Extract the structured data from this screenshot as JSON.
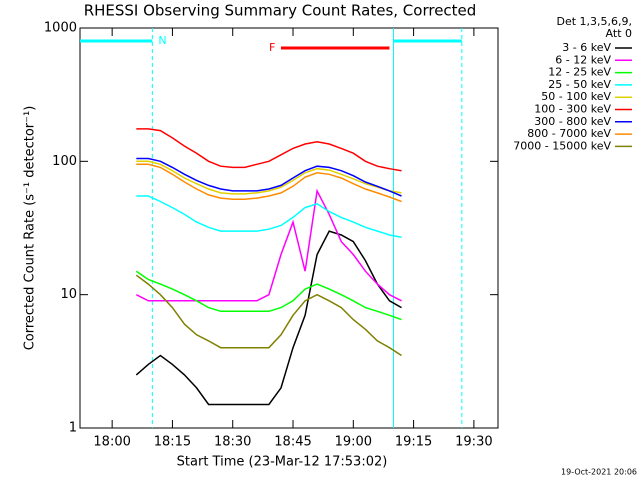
{
  "chart_data": {
    "type": "line",
    "title": "RHESSI Observing Summary Count Rates, Corrected",
    "x_label": "Start Time (23-Mar-12 17:53:02)",
    "y_label": "Corrected Count Rate (s⁻¹ detector⁻¹)",
    "legend_header": [
      "Det 1,3,5,6,9,",
      "Att 0"
    ],
    "footer": "19-Oct-2021 20:06",
    "log_y": true,
    "ylim": [
      1,
      1000
    ],
    "yticks": [
      1,
      10,
      100,
      1000
    ],
    "xlim": [
      "17:52",
      "19:36"
    ],
    "xticks": [
      "18:00",
      "18:15",
      "18:30",
      "18:45",
      "19:00",
      "19:15",
      "19:30"
    ],
    "x": [
      "18:06",
      "18:09",
      "18:12",
      "18:15",
      "18:18",
      "18:21",
      "18:24",
      "18:27",
      "18:30",
      "18:33",
      "18:36",
      "18:39",
      "18:42",
      "18:45",
      "18:48",
      "18:51",
      "18:54",
      "18:57",
      "19:00",
      "19:03",
      "19:06",
      "19:09",
      "19:12"
    ],
    "series": [
      {
        "name": "3 - 6 keV",
        "color": "#000000",
        "values": [
          2.5,
          3,
          3.5,
          3,
          2.5,
          2,
          1.5,
          1.5,
          1.5,
          1.5,
          1.5,
          1.5,
          2,
          4,
          7,
          20,
          30,
          28,
          25,
          18,
          12,
          9,
          8
        ]
      },
      {
        "name": "6 - 12 keV",
        "color": "#ff00ff",
        "values": [
          10,
          9,
          9,
          9,
          9,
          9,
          9,
          9,
          9,
          9,
          9,
          10,
          20,
          35,
          15,
          60,
          40,
          25,
          20,
          15,
          12,
          10,
          9
        ]
      },
      {
        "name": "12 - 25 keV",
        "color": "#00ff00",
        "values": [
          15,
          13,
          12,
          11,
          10,
          9,
          8,
          7.5,
          7.5,
          7.5,
          7.5,
          7.5,
          8,
          9,
          11,
          12,
          11,
          10,
          9,
          8,
          7.5,
          7,
          6.5
        ]
      },
      {
        "name": "25 - 50 keV",
        "color": "#00ffff",
        "values": [
          55,
          55,
          50,
          45,
          40,
          35,
          32,
          30,
          30,
          30,
          30,
          31,
          33,
          38,
          45,
          48,
          42,
          38,
          35,
          32,
          30,
          28,
          27
        ]
      },
      {
        "name": "50 - 100 keV",
        "color": "#e0d000",
        "values": [
          100,
          100,
          95,
          85,
          75,
          68,
          62,
          58,
          57,
          57,
          58,
          60,
          64,
          72,
          82,
          88,
          86,
          80,
          74,
          68,
          64,
          60,
          58
        ]
      },
      {
        "name": "100 - 300 keV",
        "color": "#ff0000",
        "values": [
          175,
          175,
          170,
          150,
          130,
          115,
          100,
          92,
          90,
          90,
          95,
          100,
          112,
          125,
          135,
          140,
          135,
          125,
          115,
          100,
          92,
          88,
          85
        ]
      },
      {
        "name": "300 - 800 keV",
        "color": "#0000ff",
        "values": [
          105,
          105,
          100,
          90,
          80,
          72,
          66,
          62,
          60,
          60,
          60,
          62,
          66,
          75,
          85,
          92,
          90,
          85,
          78,
          70,
          65,
          60,
          55
        ]
      },
      {
        "name": "800 - 7000 keV",
        "color": "#ff8c00",
        "values": [
          95,
          95,
          90,
          80,
          70,
          62,
          56,
          53,
          52,
          52,
          53,
          55,
          58,
          65,
          76,
          82,
          80,
          75,
          68,
          62,
          58,
          54,
          50
        ]
      },
      {
        "name": "7000 - 15000 keV",
        "color": "#808000",
        "values": [
          14,
          12,
          10,
          8,
          6,
          5,
          4.5,
          4,
          4,
          4,
          4,
          4,
          5,
          7,
          9,
          10,
          9,
          8,
          6.5,
          5.5,
          4.5,
          4,
          3.5
        ]
      }
    ],
    "intervals": [
      {
        "label": "N",
        "color": "#00ffff",
        "spans": [
          [
            "17:52",
            "18:10"
          ],
          [
            "19:10",
            "19:27"
          ]
        ]
      },
      {
        "label": "F",
        "color": "#ff0000",
        "spans": [
          [
            "18:42",
            "19:09"
          ]
        ]
      }
    ]
  }
}
